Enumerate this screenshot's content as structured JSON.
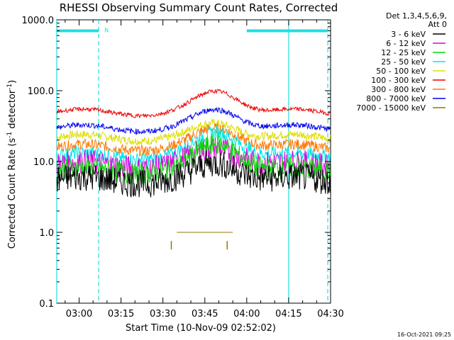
{
  "chart_data": {
    "type": "line",
    "title": "RHESSI Observing Summary Count Rates, Corrected",
    "xlabel": "Start Time (10-Nov-09 02:52:02)",
    "ylabel_main": "Corrected Count Rate (s",
    "ylabel_sup1": "-1",
    "ylabel_mid": " detector",
    "ylabel_sup2": "-1",
    "ylabel_end": ")",
    "yscale": "log",
    "ylim": [
      0.1,
      1000.0
    ],
    "yticks": [
      {
        "v": 1000.0,
        "label": "1000.0"
      },
      {
        "v": 100.0,
        "label": "100.0"
      },
      {
        "v": 10.0,
        "label": "10.0"
      },
      {
        "v": 1.0,
        "label": "1.0"
      },
      {
        "v": 0.1,
        "label": "0.1"
      }
    ],
    "xlim_min": [
      0,
      98
    ],
    "xticks": [
      {
        "m": 8,
        "label": "03:00"
      },
      {
        "m": 23,
        "label": "03:15"
      },
      {
        "m": 38,
        "label": "03:30"
      },
      {
        "m": 53,
        "label": "03:45"
      },
      {
        "m": 68,
        "label": "04:00"
      },
      {
        "m": 83,
        "label": "04:15"
      },
      {
        "m": 98,
        "label": "04:30"
      }
    ],
    "legend_header": [
      "Det 1,3,4,5,6,9,",
      "Att 0"
    ],
    "series": [
      {
        "name": "3 - 6 keV",
        "color": "#000000",
        "base": 5.5,
        "peak": 9.5,
        "noise": 0.4
      },
      {
        "name": "6 - 12 keV",
        "color": "#dd00dd",
        "base": 9.0,
        "peak": 15.5,
        "noise": 0.35
      },
      {
        "name": "12 - 25 keV",
        "color": "#00dd00",
        "base": 7.5,
        "peak": 18.0,
        "noise": 0.3
      },
      {
        "name": "25 - 50 keV",
        "color": "#00e5e5",
        "base": 12.0,
        "peak": 26.0,
        "noise": 0.2
      },
      {
        "name": "50 - 100 keV",
        "color": "#dddd00",
        "base": 22.0,
        "peak": 35.0,
        "noise": 0.12
      },
      {
        "name": "100 - 300 keV",
        "color": "#ee0000",
        "base": 50.0,
        "peak": 100.0,
        "noise": 0.06
      },
      {
        "name": "300 - 800 keV",
        "color": "#ff7700",
        "base": 16.0,
        "peak": 30.0,
        "noise": 0.15
      },
      {
        "name": "800 - 7000 keV",
        "color": "#0000ee",
        "base": 30.0,
        "peak": 55.0,
        "noise": 0.08
      },
      {
        "name": "7000 - 15000 keV",
        "color": "#997700",
        "base": 0,
        "peak": 0,
        "noise": 0
      }
    ],
    "flags": {
      "color": "#22dddd",
      "label": "N",
      "label_time_min": 15,
      "bars": [
        [
          0,
          15
        ],
        [
          68,
          83
        ],
        [
          83,
          97
        ]
      ],
      "solid_lines_min": [
        0,
        83
      ],
      "dashed_lines_min": [
        15,
        97
      ],
      "level": 700
    },
    "event": {
      "color": "#997700",
      "segment_min": [
        43,
        63
      ],
      "value": 1.0,
      "markers": [
        {
          "m": 41,
          "value": 0.95
        },
        {
          "m": 61,
          "value": 0.95
        }
      ]
    },
    "timestamp": "16-Oct-2021 09:25"
  }
}
